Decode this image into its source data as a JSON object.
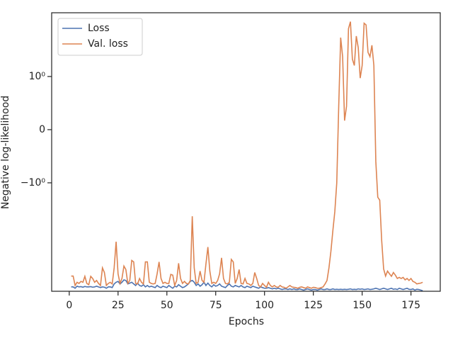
{
  "chart_data": {
    "type": "line",
    "xlabel": "Epochs",
    "ylabel": "Negative log-likelihood",
    "yscale": "symlog",
    "linthresh": 1,
    "xlim": [
      -9,
      190
    ],
    "ylim": [
      -185,
      21.5
    ],
    "xticks": [
      0,
      25,
      50,
      75,
      100,
      125,
      150,
      175
    ],
    "yticks": [
      {
        "value": -1,
        "label": "−10⁰"
      },
      0,
      {
        "value": 1,
        "label": "10⁰"
      }
    ],
    "legend": "upper left",
    "x": [
      1,
      2,
      3,
      4,
      5,
      6,
      7,
      8,
      9,
      10,
      11,
      12,
      13,
      14,
      15,
      16,
      17,
      18,
      19,
      20,
      21,
      22,
      23,
      24,
      25,
      26,
      27,
      28,
      29,
      30,
      31,
      32,
      33,
      34,
      35,
      36,
      37,
      38,
      39,
      40,
      41,
      42,
      43,
      44,
      45,
      46,
      47,
      48,
      49,
      50,
      51,
      52,
      53,
      54,
      55,
      56,
      57,
      58,
      59,
      60,
      61,
      62,
      63,
      64,
      65,
      66,
      67,
      68,
      69,
      70,
      71,
      72,
      73,
      74,
      75,
      76,
      77,
      78,
      79,
      80,
      81,
      82,
      83,
      84,
      85,
      86,
      87,
      88,
      89,
      90,
      91,
      92,
      93,
      94,
      95,
      96,
      97,
      98,
      99,
      100,
      101,
      102,
      103,
      104,
      105,
      106,
      107,
      108,
      109,
      110,
      111,
      112,
      113,
      114,
      115,
      116,
      117,
      118,
      119,
      120,
      121,
      122,
      123,
      124,
      125,
      126,
      127,
      128,
      129,
      130,
      131,
      132,
      133,
      134,
      135,
      136,
      137,
      138,
      139,
      140,
      141,
      142,
      143,
      144,
      145,
      146,
      147,
      148,
      149,
      150,
      151,
      152,
      153,
      154,
      155,
      156,
      157,
      158,
      159,
      160,
      161,
      162,
      163,
      164,
      165,
      166,
      167,
      168,
      169,
      170,
      171,
      172,
      173,
      174,
      175,
      176,
      177,
      178,
      179,
      180,
      181
    ],
    "series": [
      {
        "name": "Loss",
        "color": "#4c72b0",
        "values": [
          -150,
          -150,
          -160,
          -145,
          -150,
          -148,
          -152,
          -147,
          -150,
          -150,
          -148,
          -152,
          -150,
          -145,
          -150,
          -155,
          -150,
          -152,
          -160,
          -150,
          -150,
          -155,
          -130,
          -120,
          -115,
          -130,
          -120,
          -107,
          -110,
          -130,
          -125,
          -120,
          -130,
          -140,
          -125,
          -140,
          -145,
          -135,
          -150,
          -140,
          -150,
          -145,
          -150,
          -155,
          -140,
          -150,
          -155,
          -145,
          -150,
          -155,
          -140,
          -150,
          -160,
          -145,
          -150,
          -135,
          -145,
          -155,
          -150,
          -140,
          -130,
          -115,
          -110,
          -120,
          -140,
          -130,
          -145,
          -135,
          -120,
          -140,
          -125,
          -140,
          -150,
          -135,
          -145,
          -140,
          -130,
          -145,
          -150,
          -155,
          -140,
          -130,
          -145,
          -150,
          -140,
          -145,
          -150,
          -140,
          -150,
          -155,
          -145,
          -150,
          -155,
          -145,
          -150,
          -155,
          -160,
          -150,
          -155,
          -160,
          -160,
          -155,
          -160,
          -165,
          -160,
          -165,
          -160,
          -165,
          -170,
          -165,
          -165,
          -170,
          -165,
          -170,
          -165,
          -170,
          -170,
          -165,
          -170,
          -175,
          -170,
          -165,
          -170,
          -175,
          -170,
          -170,
          -175,
          -170,
          -165,
          -170,
          -170,
          -165,
          -170,
          -170,
          -165,
          -170,
          -168,
          -170,
          -168,
          -170,
          -168,
          -170,
          -168,
          -165,
          -170,
          -168,
          -170,
          -165,
          -168,
          -165,
          -170,
          -168,
          -165,
          -170,
          -168,
          -165,
          -160,
          -165,
          -170,
          -165,
          -160,
          -165,
          -170,
          -165,
          -160,
          -168,
          -165,
          -170,
          -160,
          -165,
          -170,
          -165,
          -160,
          -168,
          -170,
          -165,
          -175,
          -168,
          -170,
          -175,
          -180
        ]
      },
      {
        "name": "Val. loss",
        "color": "#dd8452",
        "values": [
          -89,
          -89,
          -140,
          -120,
          -127,
          -115,
          -120,
          -90,
          -127,
          -135,
          -90,
          -100,
          -120,
          -110,
          -127,
          -140,
          -60,
          -75,
          -140,
          -127,
          -120,
          -130,
          -60,
          -17,
          -80,
          -127,
          -100,
          -55,
          -65,
          -127,
          -110,
          -42,
          -45,
          -127,
          -130,
          -100,
          -120,
          -130,
          -45,
          -45,
          -120,
          -127,
          -130,
          -127,
          -80,
          -45,
          -100,
          -127,
          -120,
          -127,
          -127,
          -82,
          -85,
          -140,
          -110,
          -48,
          -100,
          -127,
          -115,
          -127,
          -130,
          -110,
          -5,
          -60,
          -127,
          -120,
          -70,
          -110,
          -120,
          -50,
          -22,
          -70,
          -127,
          -120,
          -127,
          -110,
          -80,
          -37,
          -100,
          -127,
          -130,
          -120,
          -40,
          -45,
          -127,
          -100,
          -65,
          -127,
          -130,
          -100,
          -127,
          -130,
          -140,
          -127,
          -75,
          -100,
          -140,
          -150,
          -127,
          -140,
          -153,
          -120,
          -140,
          -150,
          -140,
          -150,
          -153,
          -140,
          -150,
          -153,
          -160,
          -150,
          -140,
          -150,
          -153,
          -155,
          -160,
          -153,
          -150,
          -155,
          -160,
          -150,
          -155,
          -160,
          -153,
          -155,
          -160,
          -160,
          -155,
          -150,
          -130,
          -110,
          -60,
          -27,
          -10,
          -4,
          -1,
          0.44,
          6.5,
          2.6,
          0.17,
          0.44,
          10,
          14,
          2.3,
          1.7,
          7,
          4,
          0.97,
          1.7,
          13,
          12,
          3.2,
          2.6,
          4.5,
          1.7,
          -0.6,
          -2,
          -2.3,
          -16,
          -63,
          -89,
          -70,
          -80,
          -90,
          -75,
          -85,
          -100,
          -95,
          -100,
          -95,
          -107,
          -100,
          -110,
          -100,
          -115,
          -120,
          -130,
          -127,
          -125,
          -120
        ]
      }
    ]
  }
}
